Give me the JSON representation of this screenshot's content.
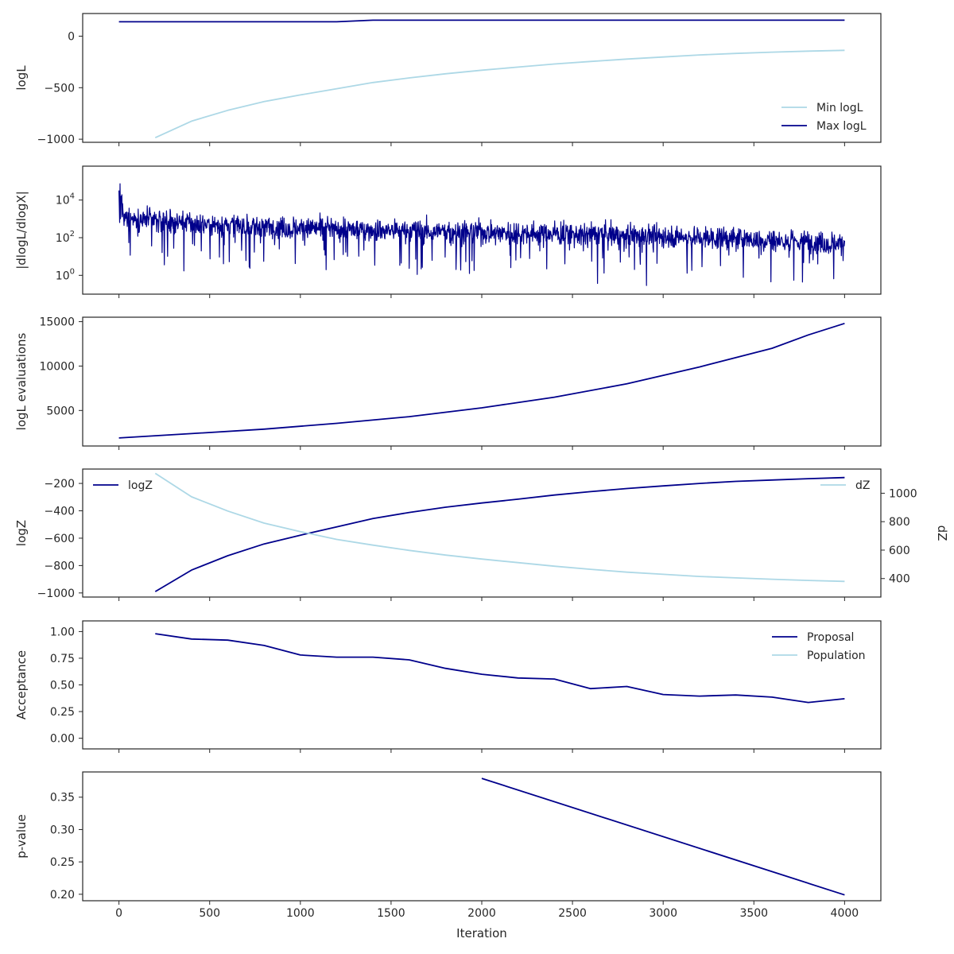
{
  "figure": {
    "xlabel": "Iteration"
  },
  "colors": {
    "dark": "#00008b",
    "light": "#add8e6",
    "axis": "#262626"
  },
  "chart_data": [
    {
      "type": "line",
      "ylabel": "logL",
      "xlim": [
        -200,
        4200
      ],
      "ylim": [
        -1030,
        220
      ],
      "yticks": [
        0,
        -500,
        -1000
      ],
      "ytick_labels": [
        "0",
        "−500",
        "−1000"
      ],
      "legend": "bottom-right",
      "series": [
        {
          "name": "Min logL",
          "color": "light",
          "x": [
            200,
            400,
            600,
            800,
            1000,
            1200,
            1400,
            1600,
            1800,
            2000,
            2200,
            2400,
            2600,
            2800,
            3000,
            3200,
            3400,
            3600,
            3800,
            4000
          ],
          "y": [
            -985,
            -825,
            -720,
            -635,
            -570,
            -510,
            -450,
            -405,
            -365,
            -330,
            -300,
            -270,
            -245,
            -222,
            -202,
            -182,
            -167,
            -155,
            -145,
            -137
          ]
        },
        {
          "name": "Max logL",
          "color": "dark",
          "x": [
            0,
            1200,
            1400,
            4000
          ],
          "y": [
            140,
            140,
            155,
            155
          ]
        }
      ]
    },
    {
      "type": "line",
      "ylabel": "|dlogL/dlogX|",
      "yscale": "log",
      "ylim_log10": [
        -1.0,
        5.8
      ],
      "yticks_exponent": [
        0,
        2,
        4
      ],
      "series": [
        {
          "name": "",
          "color": "dark",
          "noisy": true,
          "x": [
            0,
            500,
            1000,
            1500,
            2000,
            2500,
            3000,
            3500,
            4000
          ],
          "y": [
            1200,
            500,
            330,
            240,
            200,
            160,
            120,
            80,
            50
          ]
        }
      ]
    },
    {
      "type": "line",
      "ylabel": "logL evaluations",
      "xlim": [
        -200,
        4200
      ],
      "ylim": [
        1000,
        15500
      ],
      "yticks": [
        5000,
        10000,
        15000
      ],
      "ytick_labels": [
        "5000",
        "10000",
        "15000"
      ],
      "series": [
        {
          "name": "",
          "color": "dark",
          "x": [
            0,
            400,
            800,
            1200,
            1600,
            2000,
            2400,
            2800,
            3200,
            3600,
            3800,
            4000
          ],
          "y": [
            1900,
            2400,
            2900,
            3550,
            4300,
            5300,
            6500,
            8000,
            9900,
            12000,
            13500,
            14800
          ]
        }
      ]
    },
    {
      "type": "line",
      "ylabel": "logZ",
      "ylabel_right": "dZ",
      "xlim": [
        -200,
        4200
      ],
      "ylim": [
        -1030,
        -95
      ],
      "yticks": [
        -200,
        -400,
        -600,
        -800,
        -1000
      ],
      "ytick_labels": [
        "−200",
        "−400",
        "−600",
        "−800",
        "−1000"
      ],
      "ylim_right": [
        270,
        1170
      ],
      "yticks_right": [
        400,
        600,
        800,
        1000
      ],
      "ytick_labels_right": [
        "400",
        "600",
        "800",
        "1000"
      ],
      "series": [
        {
          "name": "logZ",
          "color": "dark",
          "axis": "left",
          "legend": "top-left",
          "x": [
            200,
            400,
            600,
            800,
            1000,
            1200,
            1400,
            1600,
            1800,
            2000,
            2200,
            2400,
            2600,
            2800,
            3000,
            3200,
            3400,
            3600,
            3800,
            4000
          ],
          "y": [
            -990,
            -833,
            -728,
            -642,
            -578,
            -517,
            -457,
            -412,
            -374,
            -343,
            -315,
            -285,
            -260,
            -237,
            -218,
            -200,
            -185,
            -175,
            -165,
            -157
          ]
        },
        {
          "name": "dZ",
          "color": "light",
          "axis": "right",
          "legend": "top-right",
          "x": [
            200,
            400,
            600,
            800,
            1000,
            1200,
            1400,
            1600,
            1800,
            2000,
            2200,
            2400,
            2600,
            2800,
            3000,
            3200,
            3400,
            3600,
            3800,
            4000
          ],
          "y": [
            1140,
            975,
            875,
            790,
            730,
            675,
            635,
            598,
            565,
            537,
            512,
            487,
            465,
            445,
            430,
            415,
            405,
            395,
            387,
            380
          ]
        }
      ]
    },
    {
      "type": "line",
      "ylabel": "Acceptance",
      "xlim": [
        -200,
        4200
      ],
      "ylim": [
        -0.1,
        1.1
      ],
      "yticks": [
        1.0,
        0.75,
        0.5,
        0.25,
        0.0
      ],
      "ytick_labels": [
        "1.00",
        "0.75",
        "0.50",
        "0.25",
        "0.00"
      ],
      "legend": "top-right",
      "series": [
        {
          "name": "Proposal",
          "color": "dark",
          "x": [
            200,
            400,
            600,
            800,
            1000,
            1200,
            1400,
            1600,
            1800,
            2000,
            2200,
            2400,
            2600,
            2800,
            3000,
            3200,
            3400,
            3600,
            3800,
            4000
          ],
          "y": [
            0.98,
            0.93,
            0.92,
            0.87,
            0.78,
            0.76,
            0.76,
            0.735,
            0.655,
            0.6,
            0.565,
            0.555,
            0.465,
            0.485,
            0.41,
            0.395,
            0.405,
            0.385,
            0.335,
            0.37
          ]
        },
        {
          "name": "Population",
          "color": "light",
          "x": [],
          "y": []
        }
      ]
    },
    {
      "type": "line",
      "ylabel": "p-value",
      "xlim": [
        -200,
        4200
      ],
      "ylim": [
        0.19,
        0.389
      ],
      "yticks": [
        0.35,
        0.3,
        0.25,
        0.2
      ],
      "ytick_labels": [
        "0.35",
        "0.30",
        "0.25",
        "0.20"
      ],
      "xticks": [
        0,
        500,
        1000,
        1500,
        2000,
        2500,
        3000,
        3500,
        4000
      ],
      "xtick_labels": [
        "0",
        "500",
        "1000",
        "1500",
        "2000",
        "2500",
        "3000",
        "3500",
        "4000"
      ],
      "series": [
        {
          "name": "",
          "color": "dark",
          "x": [
            2000,
            4000
          ],
          "y": [
            0.379,
            0.199
          ]
        }
      ]
    }
  ]
}
